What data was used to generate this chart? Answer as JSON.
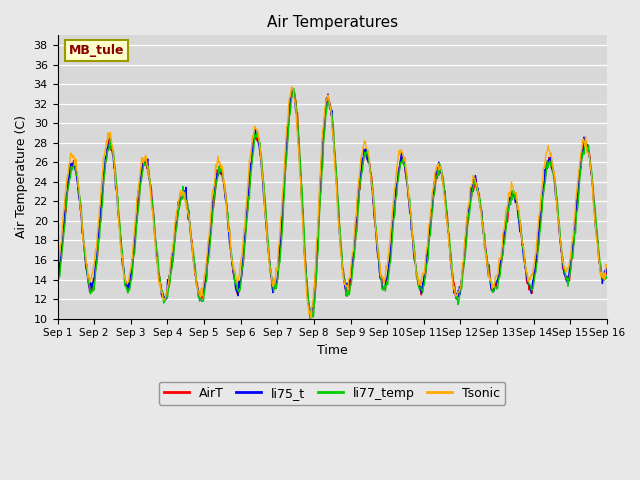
{
  "title": "Air Temperatures",
  "xlabel": "Time",
  "ylabel": "Air Temperature (C)",
  "ylim": [
    10,
    39
  ],
  "yticks": [
    10,
    12,
    14,
    16,
    18,
    20,
    22,
    24,
    26,
    28,
    30,
    32,
    34,
    36,
    38
  ],
  "site_label": "MB_tule",
  "series_colors": [
    "#ff0000",
    "#0000ff",
    "#00cc00",
    "#ffaa00"
  ],
  "line_width": 1.0,
  "bg_color": "#e8e8e8",
  "plot_bg_color": "#d8d8d8",
  "n_days": 15,
  "points_per_day": 48,
  "x_tick_labels": [
    "Sep 1",
    "Sep 2",
    "Sep 3",
    "Sep 4",
    "Sep 5",
    "Sep 6",
    "Sep 7",
    "Sep 8",
    "Sep 9",
    "Sep 10",
    "Sep 11",
    "Sep 12",
    "Sep 13",
    "Sep 14",
    "Sep 15",
    "Sep 16"
  ],
  "legend_entries": [
    "AirT",
    "li75_t",
    "li77_temp",
    "Tsonic"
  ],
  "amp_envelope": [
    6,
    7,
    8,
    5,
    6,
    7,
    9,
    13,
    7,
    7,
    6,
    7,
    4,
    6,
    7
  ],
  "base_envelope": [
    19,
    20,
    21,
    17,
    18,
    20,
    22,
    23,
    20,
    20,
    19,
    19,
    17,
    19,
    21
  ]
}
